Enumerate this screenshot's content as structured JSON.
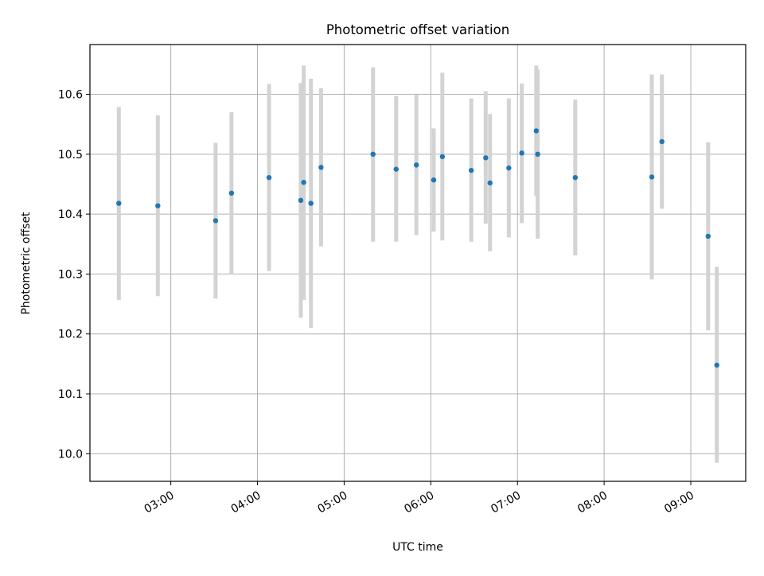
{
  "chart_data": {
    "type": "scatter",
    "title": "Photometric offset variation",
    "xlabel": "UTC time",
    "ylabel": "Photometric offset",
    "x_ticks": [
      "03:00",
      "04:00",
      "05:00",
      "06:00",
      "07:00",
      "08:00",
      "09:00"
    ],
    "y_ticks": [
      "10.0",
      "10.1",
      "10.2",
      "10.3",
      "10.4",
      "10.5",
      "10.6"
    ],
    "xlim": [
      "02:04",
      "09:38"
    ],
    "ylim": [
      9.954,
      10.683
    ],
    "grid": true,
    "colors": {
      "point": "#1f77b4",
      "errorbar": "#d3d3d3",
      "grid": "#b0b0b0"
    },
    "points": [
      {
        "x": "02:24",
        "y": 10.418,
        "err_low": 10.257,
        "err_high": 10.579
      },
      {
        "x": "02:51",
        "y": 10.414,
        "err_low": 10.263,
        "err_high": 10.565
      },
      {
        "x": "03:31",
        "y": 10.389,
        "err_low": 10.259,
        "err_high": 10.519
      },
      {
        "x": "03:42",
        "y": 10.435,
        "err_low": 10.3,
        "err_high": 10.57
      },
      {
        "x": "04:08",
        "y": 10.461,
        "err_low": 10.305,
        "err_high": 10.617
      },
      {
        "x": "04:30",
        "y": 10.423,
        "err_low": 10.227,
        "err_high": 10.619
      },
      {
        "x": "04:32",
        "y": 10.453,
        "err_low": 10.257,
        "err_high": 10.648
      },
      {
        "x": "04:37",
        "y": 10.418,
        "err_low": 10.21,
        "err_high": 10.626
      },
      {
        "x": "04:44",
        "y": 10.478,
        "err_low": 10.346,
        "err_high": 10.61
      },
      {
        "x": "05:20",
        "y": 10.5,
        "err_low": 10.354,
        "err_high": 10.645
      },
      {
        "x": "05:36",
        "y": 10.475,
        "err_low": 10.354,
        "err_high": 10.597
      },
      {
        "x": "05:50",
        "y": 10.482,
        "err_low": 10.365,
        "err_high": 10.599
      },
      {
        "x": "06:02",
        "y": 10.457,
        "err_low": 10.371,
        "err_high": 10.543
      },
      {
        "x": "06:08",
        "y": 10.496,
        "err_low": 10.356,
        "err_high": 10.636
      },
      {
        "x": "06:28",
        "y": 10.473,
        "err_low": 10.354,
        "err_high": 10.593
      },
      {
        "x": "06:38",
        "y": 10.494,
        "err_low": 10.384,
        "err_high": 10.605
      },
      {
        "x": "06:41",
        "y": 10.452,
        "err_low": 10.338,
        "err_high": 10.567
      },
      {
        "x": "06:54",
        "y": 10.477,
        "err_low": 10.361,
        "err_high": 10.593
      },
      {
        "x": "07:03",
        "y": 10.502,
        "err_low": 10.385,
        "err_high": 10.618
      },
      {
        "x": "07:13",
        "y": 10.539,
        "err_low": 10.43,
        "err_high": 10.648
      },
      {
        "x": "07:14",
        "y": 10.5,
        "err_low": 10.359,
        "err_high": 10.641
      },
      {
        "x": "07:40",
        "y": 10.461,
        "err_low": 10.331,
        "err_high": 10.591
      },
      {
        "x": "08:33",
        "y": 10.462,
        "err_low": 10.291,
        "err_high": 10.633
      },
      {
        "x": "08:40",
        "y": 10.521,
        "err_low": 10.409,
        "err_high": 10.633
      },
      {
        "x": "09:12",
        "y": 10.363,
        "err_low": 10.206,
        "err_high": 10.52
      },
      {
        "x": "09:18",
        "y": 10.148,
        "err_low": 9.985,
        "err_high": 10.312
      }
    ]
  }
}
